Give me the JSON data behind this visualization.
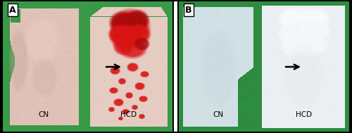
{
  "figsize": [
    5.0,
    1.89
  ],
  "dpi": 100,
  "bg_color": [
    1.0,
    1.0,
    1.0
  ],
  "panel_A": {
    "label": "A",
    "bg_green": [
      0.22,
      0.6,
      0.28
    ],
    "cn_flesh": [
      0.88,
      0.76,
      0.72
    ],
    "cn_flesh_dark": [
      0.78,
      0.65,
      0.6
    ],
    "hcd_flesh": [
      0.9,
      0.8,
      0.76
    ],
    "red_bright": [
      0.85,
      0.08,
      0.08
    ],
    "red_dark": [
      0.65,
      0.04,
      0.04
    ]
  },
  "panel_B": {
    "label": "B",
    "bg_green": [
      0.18,
      0.55,
      0.25
    ],
    "cn_pale": [
      0.82,
      0.88,
      0.9
    ],
    "hcd_white": [
      0.92,
      0.94,
      0.95
    ],
    "hcd_white2": [
      0.96,
      0.97,
      0.98
    ]
  },
  "border_color": [
    0.0,
    0.0,
    0.0
  ]
}
